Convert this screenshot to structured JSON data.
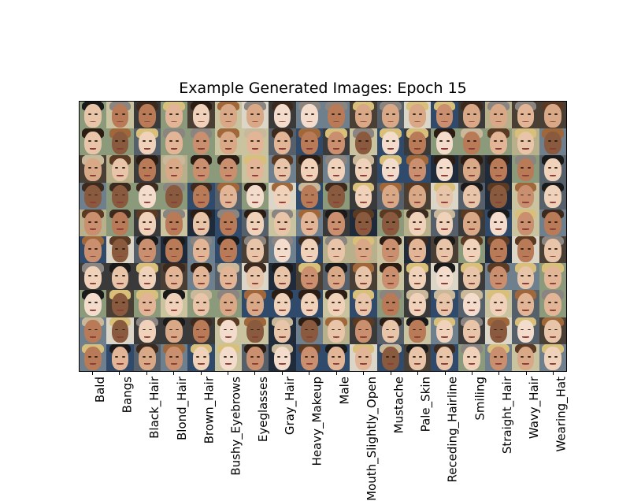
{
  "figure": {
    "title": "Example Generated Images: Epoch 15"
  },
  "grid": {
    "rows": 10,
    "cols": 18
  },
  "x_labels": [
    "Bald",
    "Bangs",
    "Black_Hair",
    "Blond_Hair",
    "Brown_Hair",
    "Bushy_Eyebrows",
    "Eyeglasses",
    "Gray_Hair",
    "Heavy_Makeup",
    "Male",
    "Mouth_Slightly_Open",
    "Mustache",
    "Pale_Skin",
    "Receding_Hairline",
    "Smiling",
    "Straight_Hair",
    "Wavy_Hair",
    "Wearing_Hat"
  ],
  "palette": {
    "skin": [
      "#e8c4a8",
      "#d9a887",
      "#c98f6e",
      "#f0d2bb",
      "#b87a57",
      "#8a5a3e",
      "#e3b597",
      "#f3dccb"
    ],
    "hair": [
      "#2b1d14",
      "#5a3a22",
      "#d9c07a",
      "#8a8580",
      "#1a1a1a",
      "#a0673a",
      "#c9b99a",
      "#3d2a1e"
    ],
    "bg": [
      "#3a3a3a",
      "#6e7f8e",
      "#c9c3a0",
      "#1f2a3a",
      "#8a9a7a",
      "#dcd6c8",
      "#4a3f35",
      "#2f4a6a",
      "#b8b08a",
      "#55606a"
    ]
  }
}
